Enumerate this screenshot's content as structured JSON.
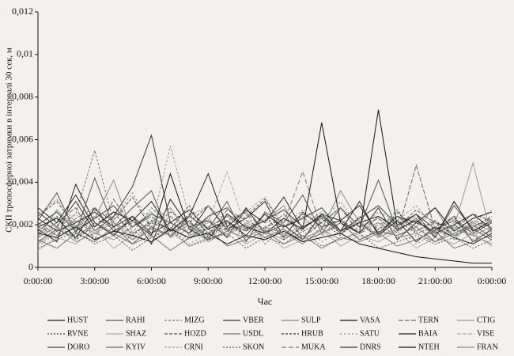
{
  "chart_data": {
    "type": "line",
    "y_label": "СКП тропосферної затримки в інтервалі 30 сек, м",
    "x_label": "Час",
    "categories": [
      "0:00:00",
      null,
      null,
      "3:00:00",
      null,
      null,
      "6:00:00",
      null,
      null,
      "9:00:00",
      null,
      null,
      "12:00:00",
      null,
      null,
      "15:00:00",
      null,
      null,
      "18:00:00",
      null,
      null,
      "21:00:00",
      null,
      null,
      "0:00:00"
    ],
    "ylim": [
      0,
      0.012
    ],
    "yticks": [
      0,
      {
        "value": 0.002,
        "label": "0,002"
      },
      {
        "value": 0.004,
        "label": "0,004"
      },
      {
        "value": 0.006,
        "label": "0,006"
      },
      {
        "value": 0.008,
        "label": "0,008"
      },
      {
        "value": 0.01,
        "label": "0,01"
      },
      {
        "value": 0.012,
        "label": "0,012"
      }
    ],
    "series": [
      {
        "name": "HUST",
        "color": "#222",
        "dash": "",
        "values": [
          0.0018,
          0.0012,
          0.0039,
          0.0021,
          0.0015,
          0.0024,
          0.0011,
          0.0032,
          0.0019,
          0.0022,
          0.0014,
          0.0028,
          0.0016,
          0.002,
          0.0013,
          0.0025,
          0.0017,
          0.0031,
          0.0015,
          0.0022,
          0.0012,
          0.0019,
          0.0014,
          0.0011,
          0.0016
        ]
      },
      {
        "name": "RAHI",
        "color": "#555",
        "dash": "",
        "values": [
          0.0022,
          0.0035,
          0.0016,
          0.0042,
          0.0019,
          0.0028,
          0.0036,
          0.0014,
          0.0024,
          0.0018,
          0.0031,
          0.0012,
          0.0026,
          0.0021,
          0.0034,
          0.0016,
          0.0028,
          0.0019,
          0.0041,
          0.0017,
          0.0023,
          0.0014,
          0.0029,
          0.0018,
          0.0013
        ]
      },
      {
        "name": "MIZG",
        "color": "#777",
        "dash": "3 2",
        "values": [
          0.0012,
          0.0018,
          0.0025,
          0.0055,
          0.0021,
          0.0016,
          0.0028,
          0.0019,
          0.0013,
          0.0022,
          0.0017,
          0.0026,
          0.0011,
          0.0019,
          0.0024,
          0.0015,
          0.0021,
          0.0013,
          0.0018,
          0.0027,
          0.0016,
          0.0012,
          0.002,
          0.0015,
          0.0019
        ]
      },
      {
        "name": "VBER",
        "color": "#333",
        "dash": "",
        "values": [
          0.0026,
          0.0019,
          0.0031,
          0.0017,
          0.0024,
          0.0038,
          0.0062,
          0.0021,
          0.0016,
          0.0029,
          0.0018,
          0.0023,
          0.0031,
          0.0014,
          0.0026,
          0.0019,
          0.0022,
          0.0016,
          0.0028,
          0.0013,
          0.0021,
          0.0017,
          0.0024,
          0.0012,
          0.0018
        ]
      },
      {
        "name": "SULP",
        "color": "#888",
        "dash": "",
        "values": [
          0.0014,
          0.0027,
          0.0018,
          0.0023,
          0.0041,
          0.0016,
          0.0021,
          0.0028,
          0.0015,
          0.0019,
          0.0024,
          0.0017,
          0.0022,
          0.0029,
          0.0013,
          0.0018,
          0.0036,
          0.0021,
          0.0015,
          0.0024,
          0.0019,
          0.0028,
          0.0013,
          0.0021,
          0.0017
        ]
      },
      {
        "name": "VASA",
        "color": "#111",
        "dash": "",
        "values": [
          0.0019,
          0.0023,
          0.0014,
          0.0028,
          0.0017,
          0.0022,
          0.0015,
          0.0044,
          0.0018,
          0.0013,
          0.0025,
          0.0019,
          0.0016,
          0.0023,
          0.0018,
          0.0068,
          0.0021,
          0.0016,
          0.0074,
          0.0019,
          0.0025,
          0.0014,
          0.0031,
          0.0017,
          0.0022
        ]
      },
      {
        "name": "TERN",
        "color": "#666",
        "dash": "6 2",
        "values": [
          0.0016,
          0.0021,
          0.0028,
          0.0013,
          0.0032,
          0.0019,
          0.0024,
          0.0017,
          0.0021,
          0.0015,
          0.0027,
          0.0022,
          0.0018,
          0.0025,
          0.0014,
          0.0021,
          0.0028,
          0.0019,
          0.0023,
          0.0016,
          0.0048,
          0.0018,
          0.0014,
          0.0022,
          0.0019
        ]
      },
      {
        "name": "CTIG",
        "color": "#999",
        "dash": "",
        "values": [
          0.0011,
          0.0017,
          0.0022,
          0.0016,
          0.0013,
          0.0019,
          0.0026,
          0.0014,
          0.0018,
          0.0023,
          0.0015,
          0.0021,
          0.0017,
          0.0013,
          0.0019,
          0.0024,
          0.0016,
          0.0021,
          0.0014,
          0.0018,
          0.0022,
          0.0015,
          0.0019,
          0.0049,
          0.0014
        ]
      },
      {
        "name": "RVNE",
        "color": "#444",
        "dash": "2 2",
        "values": [
          0.0021,
          0.0015,
          0.0019,
          0.0024,
          0.0018,
          0.0013,
          0.0021,
          0.0017,
          0.0025,
          0.0016,
          0.0022,
          0.0014,
          0.0019,
          0.0023,
          0.0017,
          0.0021,
          0.0015,
          0.0024,
          0.0018,
          0.0022,
          0.0016,
          0.0019,
          0.0023,
          0.0017,
          0.0021
        ]
      },
      {
        "name": "SHAZ",
        "color": "#aaa",
        "dash": "",
        "values": [
          0.0008,
          0.0014,
          0.0011,
          0.0018,
          0.0009,
          0.0015,
          0.0012,
          0.0017,
          0.001,
          0.0014,
          0.0019,
          0.0011,
          0.0016,
          0.0009,
          0.0013,
          0.0018,
          0.001,
          0.0015,
          0.0012,
          0.0017,
          0.0009,
          0.0014,
          0.0011,
          0.0016,
          0.001
        ]
      },
      {
        "name": "HOZD",
        "color": "#555",
        "dash": "4 2",
        "values": [
          0.0024,
          0.0031,
          0.0019,
          0.0027,
          0.0022,
          0.0033,
          0.0018,
          0.0026,
          0.0021,
          0.0029,
          0.0017,
          0.0024,
          0.0032,
          0.0019,
          0.0025,
          0.0021,
          0.0028,
          0.0016,
          0.0024,
          0.0019,
          0.0027,
          0.0021,
          0.0018,
          0.0025,
          0.0022
        ]
      },
      {
        "name": "USDL",
        "color": "#777",
        "dash": "",
        "values": [
          0.0013,
          0.0009,
          0.0016,
          0.0012,
          0.0019,
          0.0011,
          0.0015,
          0.0008,
          0.0014,
          0.0018,
          0.001,
          0.0013,
          0.0017,
          0.0011,
          0.0015,
          0.0009,
          0.0014,
          0.0012,
          0.0016,
          0.001,
          0.0013,
          0.0017,
          0.0009,
          0.0012,
          0.0015
        ]
      },
      {
        "name": "HRUB",
        "color": "#333",
        "dash": "3 2",
        "values": [
          0.0017,
          0.0024,
          0.0013,
          0.002,
          0.0026,
          0.0015,
          0.0022,
          0.0018,
          0.0029,
          0.0014,
          0.0021,
          0.0017,
          0.0025,
          0.0013,
          0.0019,
          0.0023,
          0.0016,
          0.0021,
          0.0014,
          0.0026,
          0.0017,
          0.0022,
          0.0015,
          0.0019,
          0.0024
        ]
      },
      {
        "name": "SATU",
        "color": "#888",
        "dash": "2 3",
        "values": [
          0.001,
          0.0016,
          0.002,
          0.0013,
          0.0017,
          0.0022,
          0.0014,
          0.0019,
          0.0011,
          0.0016,
          0.0021,
          0.0013,
          0.0018,
          0.0015,
          0.002,
          0.0012,
          0.0017,
          0.0022,
          0.0014,
          0.0019,
          0.0011,
          0.0016,
          0.002,
          0.0013,
          0.0017
        ]
      },
      {
        "name": "BAIA",
        "color": "#222",
        "dash": "",
        "values": [
          0.0028,
          0.0021,
          0.0034,
          0.0019,
          0.0026,
          0.0022,
          0.0031,
          0.0017,
          0.0024,
          0.0044,
          0.0019,
          0.0027,
          0.0021,
          0.0033,
          0.0018,
          0.0025,
          0.0022,
          0.0029,
          0.0016,
          0.0024,
          0.0021,
          0.0028,
          0.0017,
          0.0023,
          0.0026
        ]
      },
      {
        "name": "VISE",
        "color": "#aaa",
        "dash": "5 2",
        "values": [
          0.0015,
          0.002,
          0.0025,
          0.0017,
          0.0022,
          0.0014,
          0.0019,
          0.0024,
          0.0016,
          0.0021,
          0.0045,
          0.0018,
          0.0023,
          0.0015,
          0.002,
          0.0026,
          0.0017,
          0.0022,
          0.0014,
          0.0019,
          0.0024,
          0.0016,
          0.0021,
          0.0018,
          0.0023
        ]
      },
      {
        "name": "DORO",
        "color": "#444",
        "dash": "",
        "values": [
          0.002,
          0.0026,
          0.0017,
          0.0023,
          0.0029,
          0.0019,
          0.0025,
          0.0021,
          0.0016,
          0.0024,
          0.0028,
          0.0018,
          0.0022,
          0.0027,
          0.0019,
          0.0024,
          0.0017,
          0.0023,
          0.0029,
          0.002,
          0.0025,
          0.0018,
          0.0022,
          0.0016,
          0.0021
        ]
      },
      {
        "name": "KYIV",
        "color": "#666",
        "dash": "",
        "values": [
          0.0012,
          0.0018,
          0.0014,
          0.0021,
          0.0016,
          0.0011,
          0.0019,
          0.0015,
          0.0022,
          0.0013,
          0.0017,
          0.002,
          0.0014,
          0.0018,
          0.0012,
          0.0016,
          0.0021,
          0.0013,
          0.0017,
          0.0015,
          0.0019,
          0.0012,
          0.0016,
          0.002,
          0.0014
        ]
      },
      {
        "name": "CRNI",
        "color": "#999",
        "dash": "3 2",
        "values": [
          0.0025,
          0.0032,
          0.0021,
          0.0028,
          0.0023,
          0.0035,
          0.0019,
          0.0057,
          0.0024,
          0.0029,
          0.0021,
          0.0026,
          0.0033,
          0.0019,
          0.0027,
          0.0022,
          0.0031,
          0.0018,
          0.0026,
          0.0022,
          0.0029,
          0.0019,
          0.0024,
          0.0021,
          0.0027
        ]
      },
      {
        "name": "SKON",
        "color": "#555",
        "dash": "2 2",
        "values": [
          0.0009,
          0.0013,
          0.0017,
          0.0011,
          0.0015,
          0.0008,
          0.0014,
          0.0018,
          0.001,
          0.0013,
          0.0016,
          0.0009,
          0.0014,
          0.0011,
          0.0017,
          0.001,
          0.0013,
          0.0016,
          0.0009,
          0.0012,
          0.0015,
          0.0011,
          0.0014,
          0.0009,
          0.0013
        ]
      },
      {
        "name": "MUKA",
        "color": "#777",
        "dash": "6 3",
        "values": [
          0.0019,
          0.0015,
          0.0023,
          0.0028,
          0.0017,
          0.0021,
          0.0016,
          0.0024,
          0.0019,
          0.0015,
          0.0022,
          0.0026,
          0.0017,
          0.0021,
          0.0045,
          0.0018,
          0.0023,
          0.0016,
          0.002,
          0.0024,
          0.0017,
          0.0021,
          0.0015,
          0.0019,
          0.0023
        ]
      },
      {
        "name": "DNRS",
        "color": "#333",
        "dash": "",
        "values": [
          0.0023,
          0.0017,
          0.0021,
          0.0026,
          0.0019,
          0.0024,
          0.0016,
          0.0021,
          0.0027,
          0.0018,
          0.0022,
          0.0015,
          0.0025,
          0.0019,
          0.0023,
          0.0028,
          0.0017,
          0.0021,
          0.0024,
          0.0018,
          0.0022,
          0.0016,
          0.002,
          0.0025,
          0.0018
        ]
      },
      {
        "name": "NTEH",
        "color": "#111",
        "dash": "",
        "values": [
          0.0016,
          0.0014,
          0.0019,
          0.0013,
          0.0017,
          0.0015,
          0.0012,
          0.0018,
          0.0014,
          0.0016,
          0.0011,
          0.0015,
          0.0013,
          0.0017,
          0.0012,
          0.0014,
          0.0016,
          0.0011,
          0.0009,
          0.0007,
          0.0005,
          0.0004,
          0.0003,
          0.0002,
          0.0002
        ]
      },
      {
        "name": "FRAN",
        "color": "#888",
        "dash": "",
        "values": [
          0.0014,
          0.0019,
          0.0012,
          0.0016,
          0.0021,
          0.0013,
          0.0018,
          0.0015,
          0.002,
          0.0012,
          0.0017,
          0.0014,
          0.0019,
          0.0016,
          0.0011,
          0.0018,
          0.0013,
          0.0017,
          0.0021,
          0.0014,
          0.0016,
          0.0012,
          0.0018,
          0.0015,
          0.0011
        ]
      }
    ]
  }
}
